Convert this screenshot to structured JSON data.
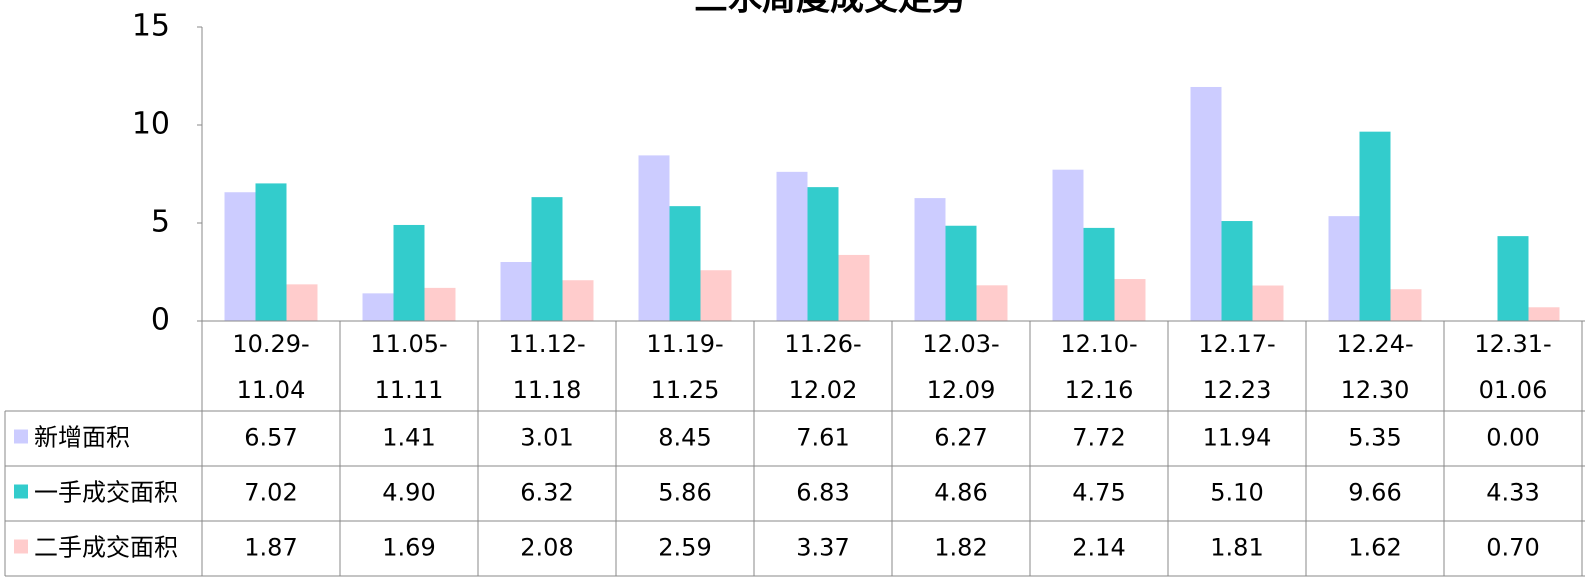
{
  "chart_data": {
    "type": "bar",
    "title": "三水周度成交走势",
    "categories": [
      "10.29-11.04",
      "11.05-11.11",
      "11.12-11.18",
      "11.19-11.25",
      "11.26-12.02",
      "12.03-12.09",
      "12.10-12.16",
      "12.17-12.23",
      "12.24-12.30",
      "12.31-01.06"
    ],
    "series": [
      {
        "name": "新增面积",
        "color": "#ccccff",
        "values": [
          6.57,
          1.41,
          3.01,
          8.45,
          7.61,
          6.27,
          7.72,
          11.94,
          5.35,
          0
        ],
        "value_labels": [
          "6.57",
          "1.41",
          "3.01",
          "8.45",
          "7.61",
          "6.27",
          "7.72",
          "11.94",
          "5.35",
          "0.00"
        ]
      },
      {
        "name": "一手成交面积",
        "color": "#33cccc",
        "values": [
          7.02,
          4.9,
          6.32,
          5.86,
          6.83,
          4.86,
          4.75,
          5.1,
          9.66,
          4.33
        ],
        "value_labels": [
          "7.02",
          "4.90",
          "6.32",
          "5.86",
          "6.83",
          "4.86",
          "4.75",
          "5.10",
          "9.66",
          "4.33"
        ]
      },
      {
        "name": "二手成交面积",
        "color": "#ffcccc",
        "values": [
          1.87,
          1.69,
          2.08,
          2.59,
          3.37,
          1.82,
          2.14,
          1.81,
          1.62,
          0.7
        ],
        "value_labels": [
          "1.87",
          "1.69",
          "2.08",
          "2.59",
          "3.37",
          "1.82",
          "2.14",
          "1.81",
          "1.62",
          "0.70"
        ]
      }
    ],
    "ylim": [
      0,
      15
    ],
    "yticks": [
      0,
      5,
      10,
      15
    ]
  }
}
